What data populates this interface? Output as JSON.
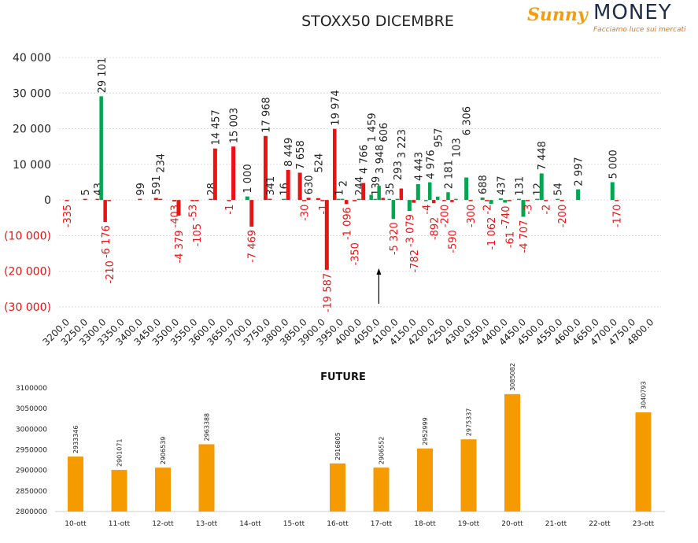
{
  "logo": {
    "brand1": "Sunny",
    "brand2": "MONEY",
    "tagline": "Facciamo luce sui mercati"
  },
  "colors": {
    "green": "#00a650",
    "red": "#ee1111",
    "orange": "#f59b00"
  },
  "chart_data": [
    {
      "type": "bar",
      "title": "STOXX50 DICEMBRE",
      "xlabel": "",
      "ylabel": "",
      "ylim": [
        -30000,
        40000
      ],
      "yticks": [
        40000,
        30000,
        20000,
        10000,
        0,
        -10000,
        -20000,
        -30000
      ],
      "ytick_labels": [
        "40 000",
        "30 000",
        "20 000",
        "10 000",
        "0",
        "(10 000)",
        "(20 000)",
        "(30 000)"
      ],
      "categories": [
        "3200.0",
        "3250.0",
        "3300.0",
        "3350.0",
        "3400.0",
        "3450.0",
        "3500.0",
        "3550.0",
        "3600.0",
        "3650.0",
        "3700.0",
        "3750.0",
        "3800.0",
        "3850.0",
        "3900.0",
        "3950.0",
        "4000.0",
        "4050.0",
        "4100.0",
        "4150.0",
        "4200.0",
        "4250.0",
        "4300.0",
        "4350.0",
        "4400.0",
        "4450.0",
        "4500.0",
        "4550.0",
        "4600.0",
        "4650.0",
        "4700.0",
        "4750.0",
        "4800.0"
      ],
      "marker_strike": 4050,
      "bars": [
        {
          "strike": 3200,
          "value": -335,
          "label": "-335",
          "color": "red"
        },
        {
          "strike": 3250,
          "value": 5,
          "label": "5",
          "color": "red"
        },
        {
          "strike": 3300,
          "value": 43,
          "label": "43",
          "color": "red"
        },
        {
          "strike": 3300,
          "value": 29101,
          "label": "29 101",
          "color": "green"
        },
        {
          "strike": 3300,
          "value": -6176,
          "label": "-6 176",
          "color": "red"
        },
        {
          "strike": 3300,
          "value": -210,
          "label": "-210",
          "color": "red"
        },
        {
          "strike": 3400,
          "value": 99,
          "label": "99",
          "color": "red"
        },
        {
          "strike": 3450,
          "value": 591,
          "label": "591",
          "color": "red"
        },
        {
          "strike": 3450,
          "value": 234,
          "label": "234",
          "color": "red"
        },
        {
          "strike": 3500,
          "value": -403,
          "label": "-403",
          "color": "red"
        },
        {
          "strike": 3500,
          "value": -4379,
          "label": "-4 379",
          "color": "red"
        },
        {
          "strike": 3550,
          "value": -53,
          "label": "-53",
          "color": "red"
        },
        {
          "strike": 3550,
          "value": -105,
          "label": "-105",
          "color": "red"
        },
        {
          "strike": 3600,
          "value": 28,
          "label": "28",
          "color": "red"
        },
        {
          "strike": 3600,
          "value": 14457,
          "label": "14 457",
          "color": "red"
        },
        {
          "strike": 3650,
          "value": -1,
          "label": "-1",
          "color": "red"
        },
        {
          "strike": 3650,
          "value": 15003,
          "label": "15 003",
          "color": "red"
        },
        {
          "strike": 3700,
          "value": 1000,
          "label": "1 000",
          "color": "green"
        },
        {
          "strike": 3700,
          "value": -7469,
          "label": "-7 469",
          "color": "red"
        },
        {
          "strike": 3750,
          "value": 17968,
          "label": "17 968",
          "color": "red"
        },
        {
          "strike": 3750,
          "value": 341,
          "label": "341",
          "color": "red"
        },
        {
          "strike": 3800,
          "value": 16,
          "label": "16",
          "color": "green"
        },
        {
          "strike": 3800,
          "value": 8449,
          "label": "8 449",
          "color": "red"
        },
        {
          "strike": 3850,
          "value": 7658,
          "label": "7 658",
          "color": "red"
        },
        {
          "strike": 3850,
          "value": -30,
          "label": "-30",
          "color": "red"
        },
        {
          "strike": 3850,
          "value": 630,
          "label": "630",
          "color": "red"
        },
        {
          "strike": 3900,
          "value": 524,
          "label": "524",
          "color": "red"
        },
        {
          "strike": 3900,
          "value": -1,
          "label": "-1",
          "color": "red"
        },
        {
          "strike": 3900,
          "value": -19587,
          "label": "-19 587",
          "color": "red"
        },
        {
          "strike": 3950,
          "value": 19974,
          "label": "19 974",
          "color": "red"
        },
        {
          "strike": 3950,
          "value": 1,
          "label": "1",
          "color": "green"
        },
        {
          "strike": 3950,
          "value": 2,
          "label": "2",
          "color": "green"
        },
        {
          "strike": 3950,
          "value": -1096,
          "label": "-1 096",
          "color": "red"
        },
        {
          "strike": 4000,
          "value": -350,
          "label": "-350",
          "color": "red"
        },
        {
          "strike": 4000,
          "value": 244,
          "label": "244",
          "color": "green"
        },
        {
          "strike": 4000,
          "value": 4766,
          "label": "4 766",
          "color": "red"
        },
        {
          "strike": 4050,
          "value": 1459,
          "label": "1 459",
          "color": "green"
        },
        {
          "strike": 4050,
          "value": 139,
          "label": "139",
          "color": "green"
        },
        {
          "strike": 4050,
          "value": 3948,
          "label": "3 948",
          "color": "green"
        },
        {
          "strike": 4050,
          "value": 606,
          "label": "606",
          "color": "red"
        },
        {
          "strike": 4100,
          "value": 35,
          "label": "35",
          "color": "green"
        },
        {
          "strike": 4100,
          "value": -5320,
          "label": "-5 320",
          "color": "green"
        },
        {
          "strike": 4100,
          "value": 293,
          "label": "293",
          "color": "green"
        },
        {
          "strike": 4100,
          "value": 3223,
          "label": "3 223",
          "color": "red"
        },
        {
          "strike": 4150,
          "value": -3079,
          "label": "-3 079",
          "color": "green"
        },
        {
          "strike": 4150,
          "value": -782,
          "label": "-782",
          "color": "red"
        },
        {
          "strike": 4150,
          "value": 4443,
          "label": "4 443",
          "color": "green"
        },
        {
          "strike": 4200,
          "value": -4,
          "label": "-4",
          "color": "green"
        },
        {
          "strike": 4200,
          "value": 4976,
          "label": "4 976",
          "color": "green"
        },
        {
          "strike": 4200,
          "value": -892,
          "label": "-892",
          "color": "red"
        },
        {
          "strike": 4200,
          "value": 957,
          "label": "957",
          "color": "green"
        },
        {
          "strike": 4250,
          "value": -200,
          "label": "-200",
          "color": "red"
        },
        {
          "strike": 4250,
          "value": 2181,
          "label": "2 181",
          "color": "green"
        },
        {
          "strike": 4250,
          "value": -590,
          "label": "-590",
          "color": "red"
        },
        {
          "strike": 4250,
          "value": 103,
          "label": "103",
          "color": "green"
        },
        {
          "strike": 4300,
          "value": 6306,
          "label": "6 306",
          "color": "green"
        },
        {
          "strike": 4300,
          "value": -300,
          "label": "-300",
          "color": "red"
        },
        {
          "strike": 4350,
          "value": 688,
          "label": "688",
          "color": "green"
        },
        {
          "strike": 4350,
          "value": -2,
          "label": "-2",
          "color": "red"
        },
        {
          "strike": 4350,
          "value": -1062,
          "label": "-1 062",
          "color": "green"
        },
        {
          "strike": 4400,
          "value": 437,
          "label": "437",
          "color": "green"
        },
        {
          "strike": 4400,
          "value": -740,
          "label": "-740",
          "color": "green"
        },
        {
          "strike": 4400,
          "value": -61,
          "label": "-61",
          "color": "red"
        },
        {
          "strike": 4450,
          "value": 131,
          "label": "131",
          "color": "green"
        },
        {
          "strike": 4450,
          "value": -4707,
          "label": "-4 707",
          "color": "green"
        },
        {
          "strike": 4450,
          "value": -3,
          "label": "-3",
          "color": "red"
        },
        {
          "strike": 4500,
          "value": 12,
          "label": "12",
          "color": "green"
        },
        {
          "strike": 4500,
          "value": 7448,
          "label": "7 448",
          "color": "green"
        },
        {
          "strike": 4500,
          "value": -2,
          "label": "-2",
          "color": "red"
        },
        {
          "strike": 4550,
          "value": 54,
          "label": "54",
          "color": "green"
        },
        {
          "strike": 4550,
          "value": -200,
          "label": "-200",
          "color": "red"
        },
        {
          "strike": 4600,
          "value": 2997,
          "label": "2 997",
          "color": "green"
        },
        {
          "strike": 4700,
          "value": 5000,
          "label": "5 000",
          "color": "green"
        },
        {
          "strike": 4700,
          "value": -170,
          "label": "-170",
          "color": "red"
        }
      ]
    },
    {
      "type": "bar",
      "title": "FUTURE",
      "ylim": [
        2800000,
        3100000
      ],
      "yticks": [
        "2800000",
        "2850000",
        "2900000",
        "2950000",
        "3000000",
        "3050000",
        "3100000"
      ],
      "categories": [
        "10-ott",
        "11-ott",
        "12-ott",
        "13-ott",
        "14-ott",
        "15-ott",
        "16-ott",
        "17-ott",
        "18-ott",
        "19-ott",
        "20-ott",
        "21-ott",
        "22-ott",
        "23-ott"
      ],
      "values": [
        2933346,
        2901071,
        2906539,
        2963388,
        null,
        null,
        2916805,
        2906552,
        2952999,
        2975337,
        3085082,
        null,
        null,
        3040793
      ],
      "labels": [
        "2933346",
        "2901071",
        "2906539",
        "2963388",
        "",
        "",
        "2916805",
        "2906552",
        "2952999",
        "2975337",
        "3085082",
        "",
        "",
        "3040793"
      ]
    }
  ]
}
